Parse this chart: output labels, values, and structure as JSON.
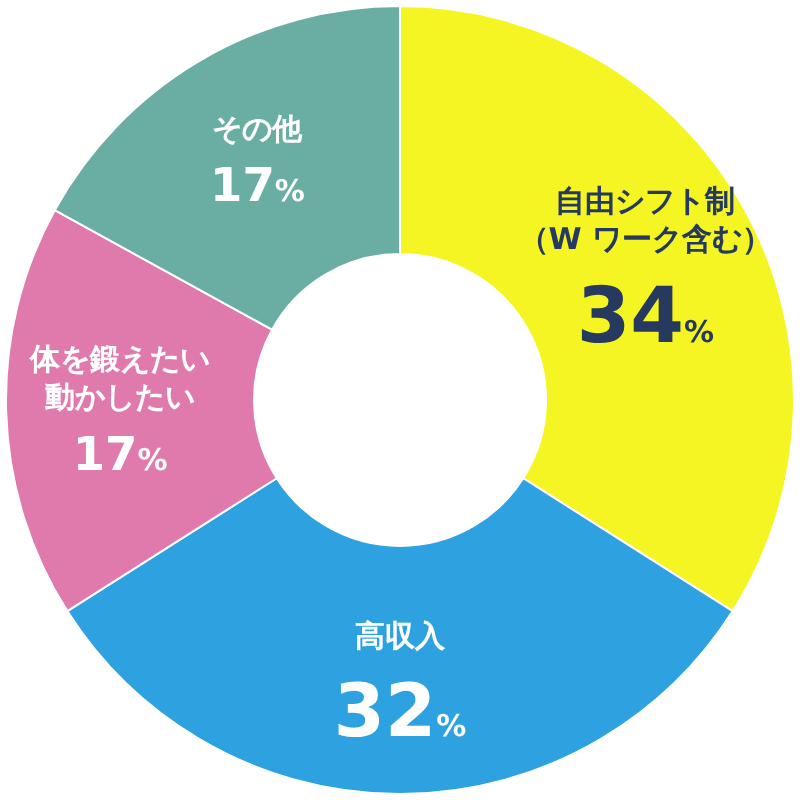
{
  "chart_data": {
    "type": "donut",
    "categories": [
      "自由シフト制（W ワーク含む）",
      "高収入",
      "体を鍛えたい動かしたい",
      "その他"
    ],
    "values": [
      34,
      32,
      17,
      17
    ],
    "value_labels": [
      "34%",
      "32%",
      "17%",
      "17%"
    ],
    "colors": [
      "#f5f523",
      "#2ea1e0",
      "#e07aad",
      "#6aaea3"
    ]
  }
}
